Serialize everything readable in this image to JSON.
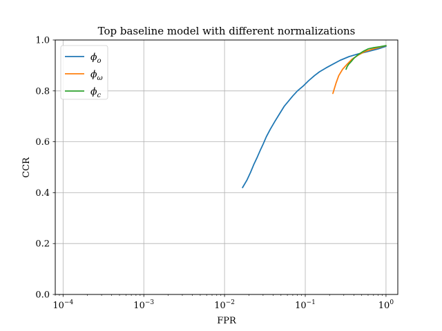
{
  "chart_data": {
    "type": "line",
    "title": "Top baseline model with different normalizations",
    "xlabel": "FPR",
    "ylabel": "CCR",
    "xscale": "log",
    "xlim": [
      8e-05,
      1.4
    ],
    "ylim": [
      0,
      1
    ],
    "x_ticks": [
      {
        "value": 0.0001,
        "base": "10",
        "exp": "−4"
      },
      {
        "value": 0.001,
        "base": "10",
        "exp": "−3"
      },
      {
        "value": 0.01,
        "base": "10",
        "exp": "−2"
      },
      {
        "value": 0.1,
        "base": "10",
        "exp": "−1"
      },
      {
        "value": 1,
        "base": "10",
        "exp": "0"
      }
    ],
    "y_ticks": [
      "0.0",
      "0.2",
      "0.4",
      "0.6",
      "0.8",
      "1.0"
    ],
    "y_tick_values": [
      0,
      0.2,
      0.4,
      0.6,
      0.8,
      1.0
    ],
    "grid": true,
    "legend_position": "top-left",
    "series": [
      {
        "name": "ϕo",
        "symbol": "ϕ",
        "sub": "o",
        "color": "#1f77b4",
        "x": [
          0.0167,
          0.019,
          0.021,
          0.023,
          0.0255,
          0.028,
          0.03,
          0.033,
          0.037,
          0.042,
          0.048,
          0.055,
          0.062,
          0.07,
          0.08,
          0.095,
          0.11,
          0.13,
          0.15,
          0.18,
          0.22,
          0.27,
          0.35,
          0.45,
          0.6,
          0.8,
          1.0
        ],
        "y": [
          0.42,
          0.45,
          0.48,
          0.51,
          0.54,
          0.57,
          0.59,
          0.62,
          0.65,
          0.68,
          0.71,
          0.74,
          0.76,
          0.78,
          0.8,
          0.82,
          0.84,
          0.86,
          0.875,
          0.89,
          0.905,
          0.92,
          0.935,
          0.945,
          0.955,
          0.965,
          0.975
        ]
      },
      {
        "name": "ϕω",
        "symbol": "ϕ",
        "sub": "ω",
        "color": "#ff7f0e",
        "x": [
          0.22,
          0.24,
          0.26,
          0.29,
          0.33,
          0.38,
          0.45,
          0.55,
          0.7,
          0.85,
          1.0
        ],
        "y": [
          0.79,
          0.83,
          0.86,
          0.885,
          0.905,
          0.925,
          0.94,
          0.955,
          0.965,
          0.972,
          0.978
        ]
      },
      {
        "name": "ϕc",
        "symbol": "ϕ",
        "sub": "c",
        "color": "#2ca02c",
        "x": [
          0.32,
          0.33,
          0.345,
          0.37,
          0.4,
          0.45,
          0.52,
          0.6,
          0.7,
          0.85,
          1.0
        ],
        "y": [
          0.885,
          0.895,
          0.905,
          0.915,
          0.928,
          0.942,
          0.955,
          0.965,
          0.97,
          0.974,
          0.978
        ]
      }
    ]
  }
}
